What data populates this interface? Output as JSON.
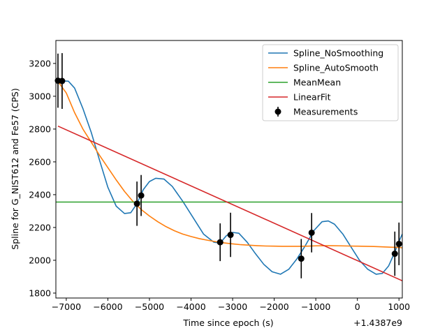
{
  "chart_data": {
    "type": "line",
    "title": "",
    "xlabel": "Time since epoch (s)",
    "ylabel": "Spline for G_NIST612 and Fe57 (CPS)",
    "x_offset_label": "+1.4387e9",
    "xlim": [
      -7250,
      1080
    ],
    "ylim": [
      1770,
      3340
    ],
    "x_ticks": [
      -7000,
      -6000,
      -5000,
      -4000,
      -3000,
      -2000,
      -1000,
      0,
      1000
    ],
    "y_ticks": [
      1800,
      2000,
      2200,
      2400,
      2600,
      2800,
      3000,
      3200
    ],
    "grid": false,
    "legend_position": "upper right",
    "series": [
      {
        "name": "Spline_NoSmoothing",
        "color": "#1f77b4",
        "x": [
          -7200,
          -7100,
          -6950,
          -6800,
          -6600,
          -6400,
          -6200,
          -6000,
          -5800,
          -5600,
          -5450,
          -5300,
          -5150,
          -5000,
          -4850,
          -4650,
          -4450,
          -4200,
          -3950,
          -3700,
          -3450,
          -3300,
          -3150,
          -3000,
          -2850,
          -2650,
          -2450,
          -2250,
          -2050,
          -1850,
          -1650,
          -1450,
          -1250,
          -1050,
          -850,
          -700,
          -550,
          -350,
          -150,
          50,
          250,
          450,
          600,
          750,
          900,
          1000,
          1080
        ],
        "y": [
          3095,
          3093,
          3092,
          3050,
          2925,
          2780,
          2610,
          2445,
          2330,
          2285,
          2290,
          2345,
          2430,
          2480,
          2500,
          2495,
          2450,
          2360,
          2260,
          2160,
          2110,
          2105,
          2150,
          2170,
          2165,
          2110,
          2040,
          1975,
          1930,
          1915,
          1945,
          2010,
          2090,
          2180,
          2235,
          2240,
          2220,
          2160,
          2080,
          2000,
          1945,
          1915,
          1920,
          1965,
          2050,
          2115,
          2160
        ]
      },
      {
        "name": "Spline_AutoSmooth",
        "color": "#ff7f0e",
        "x": [
          -7200,
          -7000,
          -6800,
          -6600,
          -6400,
          -6200,
          -6000,
          -5800,
          -5600,
          -5400,
          -5200,
          -5000,
          -4800,
          -4600,
          -4400,
          -4200,
          -4000,
          -3800,
          -3600,
          -3400,
          -3200,
          -3000,
          -2800,
          -2600,
          -2400,
          -2200,
          -2000,
          -1800,
          -1600,
          -1400,
          -1200,
          -1000,
          -800,
          -600,
          -400,
          -200,
          0,
          200,
          400,
          600,
          800,
          1000,
          1080
        ],
        "y": [
          3090,
          3020,
          2900,
          2800,
          2720,
          2640,
          2565,
          2490,
          2420,
          2360,
          2310,
          2270,
          2235,
          2205,
          2180,
          2160,
          2145,
          2132,
          2122,
          2113,
          2106,
          2100,
          2095,
          2092,
          2089,
          2087,
          2086,
          2085,
          2085,
          2085,
          2086,
          2088,
          2089,
          2089,
          2088,
          2087,
          2086,
          2085,
          2084,
          2082,
          2080,
          2078,
          2076
        ]
      },
      {
        "name": "MeanMean",
        "color": "#2ca02c",
        "x": [
          -7250,
          1080
        ],
        "y": [
          2355,
          2355
        ]
      },
      {
        "name": "LinearFit",
        "color": "#d62728",
        "x": [
          -7200,
          1080
        ],
        "y": [
          2818,
          1875
        ]
      }
    ],
    "measurements": {
      "name": "Measurements",
      "color": "#000000",
      "points": [
        {
          "x": -7200,
          "y": 3095,
          "err": 165
        },
        {
          "x": -7100,
          "y": 3093,
          "err": 170
        },
        {
          "x": -5300,
          "y": 2345,
          "err": 135
        },
        {
          "x": -5200,
          "y": 2395,
          "err": 125
        },
        {
          "x": -3300,
          "y": 2110,
          "err": 115
        },
        {
          "x": -3050,
          "y": 2155,
          "err": 135
        },
        {
          "x": -1350,
          "y": 2010,
          "err": 120
        },
        {
          "x": -1100,
          "y": 2168,
          "err": 120
        },
        {
          "x": 900,
          "y": 2040,
          "err": 135
        },
        {
          "x": 1000,
          "y": 2100,
          "err": 130
        }
      ]
    }
  }
}
